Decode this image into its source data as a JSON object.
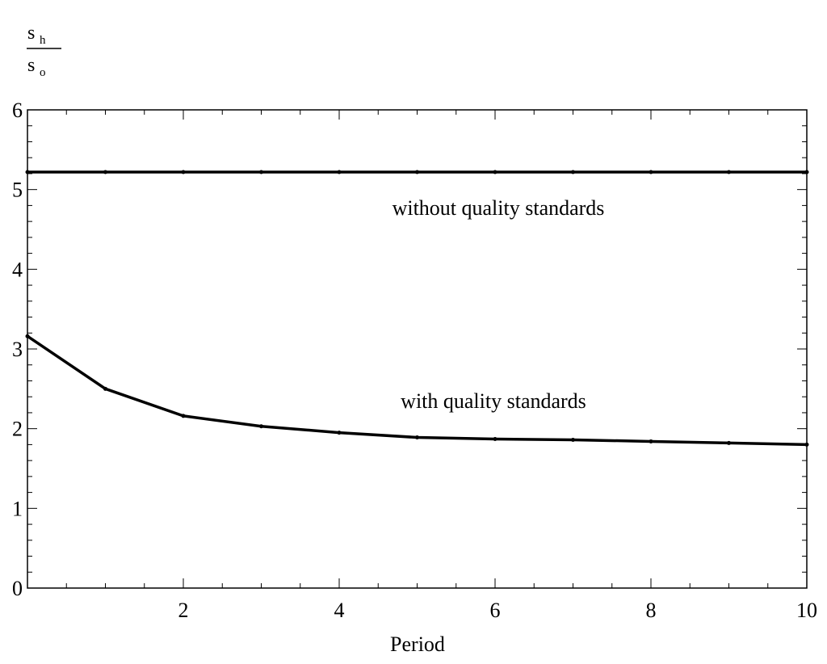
{
  "chart_data": {
    "type": "line",
    "title": "",
    "ylabel": {
      "numerator": "s",
      "numerator_sub": "h",
      "denominator": "s",
      "denominator_sub": "o"
    },
    "xlabel": "Period",
    "xlim": [
      0,
      10
    ],
    "ylim": [
      0,
      6
    ],
    "x_ticks": [
      2,
      4,
      6,
      8,
      10
    ],
    "y_ticks": [
      0,
      1,
      2,
      3,
      4,
      5,
      6
    ],
    "grid": false,
    "frame": true,
    "line_color": "#000000",
    "series": [
      {
        "label": "without quality standards",
        "x": [
          0,
          1,
          2,
          3,
          4,
          5,
          6,
          7,
          8,
          9,
          10
        ],
        "y": [
          5.22,
          5.22,
          5.22,
          5.22,
          5.22,
          5.22,
          5.22,
          5.22,
          5.22,
          5.22,
          5.22
        ]
      },
      {
        "label": "with quality standards",
        "x": [
          0,
          1,
          2,
          3,
          4,
          5,
          6,
          7,
          8,
          9,
          10
        ],
        "y": [
          3.16,
          2.5,
          2.16,
          2.03,
          1.95,
          1.89,
          1.87,
          1.86,
          1.84,
          1.82,
          1.8
        ]
      }
    ]
  }
}
